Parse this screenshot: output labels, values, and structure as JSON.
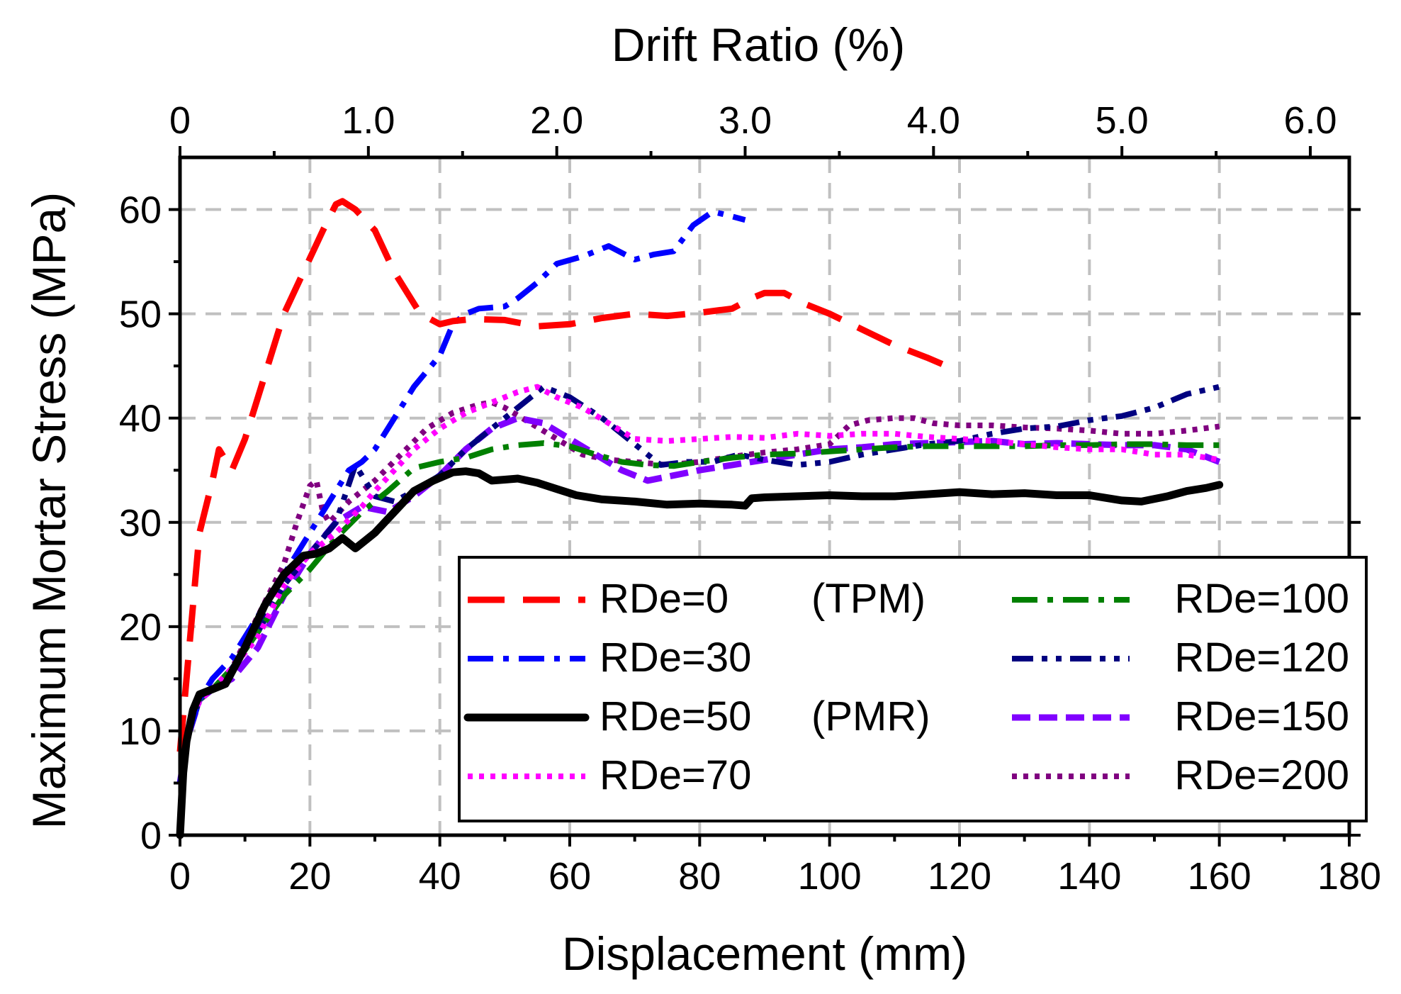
{
  "chart_data": {
    "type": "line",
    "title": "",
    "xlabel": "Displacement (mm)",
    "ylabel": "Maximum Mortar Stress (MPa)",
    "top_xlabel": "Drift Ratio (%)",
    "xlim": [
      0,
      180
    ],
    "ylim": [
      0,
      65
    ],
    "x_ticks": [
      0,
      20,
      40,
      60,
      80,
      100,
      120,
      140,
      160,
      180
    ],
    "x_tick_labels": [
      "0",
      "20",
      "40",
      "60",
      "80",
      "100",
      "120",
      "140",
      "160",
      "180"
    ],
    "y_ticks": [
      0,
      10,
      20,
      30,
      40,
      50,
      60
    ],
    "y_tick_labels": [
      "0",
      "10",
      "20",
      "30",
      "40",
      "50",
      "60"
    ],
    "top_ticks": [
      0,
      1,
      2,
      3,
      4,
      5,
      6
    ],
    "top_tick_labels": [
      "0",
      "1.0",
      "2.0",
      "3.0",
      "4.0",
      "5.0",
      "6.0"
    ],
    "top_axis_scale": "drift_pct = displacement_mm / 29",
    "grid": true,
    "legend_position": "bottom-right",
    "series": [
      {
        "name": "RDe=0",
        "legend_label": "RDe=0",
        "legend_suffix": "(TPM)",
        "color": "#ff0000",
        "style": "dash",
        "x": [
          0,
          1,
          2,
          3,
          5,
          6,
          8,
          10,
          13,
          16,
          19,
          22,
          24,
          25,
          27,
          30,
          33,
          37,
          40,
          42,
          45,
          50,
          55,
          60,
          65,
          70,
          75,
          80,
          85,
          88,
          90,
          93,
          96,
          100,
          105,
          110,
          115,
          118
        ],
        "y": [
          8,
          15,
          22,
          29,
          34,
          37,
          35,
          38,
          44,
          50,
          54,
          58,
          60.5,
          60.8,
          60,
          58,
          54,
          50,
          49,
          49.3,
          49.5,
          49.4,
          48.8,
          49,
          49.6,
          50,
          49.8,
          50.1,
          50.5,
          51.5,
          52,
          52,
          51,
          50,
          48.5,
          47,
          45.8,
          45
        ]
      },
      {
        "name": "RDe=30",
        "legend_label": "RDe=30",
        "legend_suffix": "",
        "color": "#0000ff",
        "style": "dashdot",
        "x": [
          0,
          1,
          2,
          3,
          5,
          8,
          12,
          16,
          20,
          23,
          26,
          28,
          30,
          33,
          36,
          40,
          42,
          44,
          46,
          50,
          52,
          55,
          58,
          62,
          66,
          70,
          73,
          76,
          79,
          82,
          84,
          87
        ],
        "y": [
          5,
          9,
          11,
          13,
          15,
          17,
          21,
          25,
          29,
          32,
          35,
          35.8,
          37,
          40,
          43,
          46,
          49,
          50,
          50.5,
          50.7,
          51.5,
          53,
          54.8,
          55.5,
          56.5,
          55.2,
          55.7,
          56,
          58.5,
          59.8,
          59.5,
          59
        ]
      },
      {
        "name": "RDe=50",
        "legend_label": "RDe=50",
        "legend_suffix": "(PMR)",
        "color": "#000000",
        "style": "solid",
        "x": [
          0,
          0.5,
          1,
          2,
          3,
          5,
          7,
          10,
          13,
          16,
          19,
          21,
          23,
          25,
          27,
          28,
          30,
          33,
          36,
          39,
          42,
          44,
          46,
          48,
          50,
          52,
          55,
          58,
          61,
          65,
          70,
          75,
          80,
          85,
          87,
          88,
          90,
          95,
          100,
          105,
          110,
          115,
          120,
          125,
          130,
          135,
          140,
          145,
          148,
          152,
          155,
          158,
          160
        ],
        "y": [
          0,
          6,
          9,
          12,
          13.5,
          14,
          14.5,
          18,
          22,
          25,
          26.8,
          27,
          27.5,
          28.5,
          27.5,
          28,
          29,
          31,
          33,
          34,
          34.8,
          34.9,
          34.7,
          34,
          34.1,
          34.2,
          33.8,
          33.2,
          32.6,
          32.2,
          32,
          31.7,
          31.8,
          31.7,
          31.6,
          32.3,
          32.4,
          32.5,
          32.6,
          32.5,
          32.5,
          32.7,
          32.9,
          32.7,
          32.8,
          32.6,
          32.6,
          32.1,
          32,
          32.5,
          33,
          33.3,
          33.6
        ]
      },
      {
        "name": "RDe=70",
        "legend_label": "RDe=70",
        "legend_suffix": "",
        "color": "#ff00ff",
        "style": "dot",
        "x": [
          0,
          1,
          2,
          3,
          5,
          8,
          12,
          16,
          20,
          24,
          28,
          30,
          33,
          36,
          40,
          44,
          48,
          52,
          55,
          58,
          62,
          66,
          70,
          75,
          80,
          85,
          90,
          95,
          100,
          105,
          110,
          115,
          120,
          125,
          130,
          135,
          140,
          145,
          150,
          155,
          160
        ],
        "y": [
          5,
          9,
          11,
          13,
          14,
          16,
          19,
          24,
          27,
          29,
          31.5,
          33,
          35,
          37,
          39,
          40.5,
          41.5,
          42.5,
          43,
          42,
          41,
          39.5,
          38,
          37.8,
          38,
          38.2,
          38.1,
          38.5,
          38.3,
          38.5,
          38.5,
          38.2,
          38,
          37.8,
          37.5,
          37.2,
          37,
          37,
          36.5,
          36.5,
          36
        ]
      },
      {
        "name": "RDe=100",
        "legend_label": "RDe=100",
        "legend_suffix": "",
        "color": "#008000",
        "style": "dashdot",
        "x": [
          0,
          1,
          2,
          3,
          5,
          8,
          12,
          16,
          20,
          24,
          28,
          32,
          36,
          40,
          44,
          48,
          52,
          56,
          60,
          64,
          68,
          72,
          76,
          80,
          85,
          90,
          95,
          100,
          105,
          110,
          115,
          120,
          125,
          130,
          135,
          140,
          145,
          150,
          155,
          160
        ],
        "y": [
          5,
          9,
          11,
          13,
          14,
          16,
          19.5,
          23,
          25.5,
          28.5,
          31,
          33,
          35.2,
          35.8,
          36.2,
          37,
          37.4,
          37.6,
          37.3,
          36.5,
          35.8,
          35.5,
          35.4,
          35.8,
          36.2,
          36.5,
          36.6,
          36.8,
          37,
          37.2,
          37.3,
          37.3,
          37.3,
          37.3,
          37.4,
          37.4,
          37.5,
          37.5,
          37.4,
          37.4
        ]
      },
      {
        "name": "RDe=120",
        "legend_label": "RDe=120",
        "legend_suffix": "",
        "color": "#000080",
        "style": "dashdotdot",
        "x": [
          0,
          1,
          2,
          3,
          5,
          8,
          12,
          16,
          20,
          24,
          27,
          30,
          33,
          36,
          40,
          44,
          48,
          52,
          56,
          60,
          65,
          70,
          74,
          78,
          82,
          86,
          90,
          95,
          100,
          105,
          110,
          115,
          120,
          125,
          130,
          135,
          140,
          145,
          150,
          155,
          160
        ],
        "y": [
          5,
          9,
          11,
          13,
          14,
          16,
          19.5,
          24,
          27,
          30,
          35.5,
          32.5,
          32,
          33,
          34.5,
          37,
          39,
          41,
          43,
          42,
          40,
          37.5,
          35.5,
          35.8,
          35.8,
          36.5,
          36,
          35.5,
          35.8,
          36.5,
          37,
          37.5,
          37.8,
          38.5,
          39,
          39.2,
          39.8,
          40.2,
          41,
          42.3,
          43
        ]
      },
      {
        "name": "RDe=150",
        "legend_label": "RDe=150",
        "legend_suffix": "",
        "color": "#8000ff",
        "style": "dash",
        "x": [
          0,
          1,
          2,
          3,
          5,
          8,
          12,
          16,
          20,
          24,
          28,
          32,
          36,
          40,
          44,
          48,
          52,
          56,
          60,
          64,
          68,
          72,
          76,
          80,
          85,
          90,
          95,
          100,
          105,
          110,
          115,
          120,
          125,
          130,
          135,
          140,
          145,
          150,
          155,
          160
        ],
        "y": [
          5,
          9,
          11,
          13,
          14,
          15,
          18,
          23,
          27,
          30,
          31.5,
          31,
          32.5,
          34.5,
          37,
          39,
          40,
          39.5,
          38,
          36.5,
          35,
          34,
          34.5,
          35,
          35.5,
          36,
          36.5,
          37,
          37.2,
          37.5,
          37.6,
          37.7,
          37.8,
          37.5,
          37.6,
          37.5,
          37.4,
          37.4,
          37,
          35.8
        ]
      },
      {
        "name": "RDe=200",
        "legend_label": "RDe=200",
        "legend_suffix": "",
        "color": "#800080",
        "style": "dot",
        "x": [
          0,
          1,
          2,
          3,
          5,
          8,
          12,
          16,
          18,
          20,
          21,
          22,
          23,
          26,
          30,
          34,
          38,
          42,
          46,
          48,
          50,
          54,
          58,
          62,
          66,
          70,
          75,
          80,
          85,
          90,
          95,
          100,
          103,
          106,
          110,
          113,
          116,
          120,
          125,
          130,
          135,
          140,
          145,
          150,
          155,
          160
        ],
        "y": [
          5,
          9,
          11,
          13,
          14,
          16,
          21,
          26,
          30,
          33.5,
          34,
          31,
          30,
          32,
          34,
          36.5,
          39,
          40.5,
          41.3,
          41.5,
          41,
          39.5,
          38,
          36.5,
          36,
          35.8,
          35.5,
          35.8,
          36.3,
          36.7,
          37,
          37.5,
          39.3,
          39.8,
          40,
          40,
          39.5,
          39.3,
          39.3,
          39.1,
          39,
          38.8,
          38.5,
          38.5,
          38.8,
          39.2
        ]
      }
    ]
  }
}
